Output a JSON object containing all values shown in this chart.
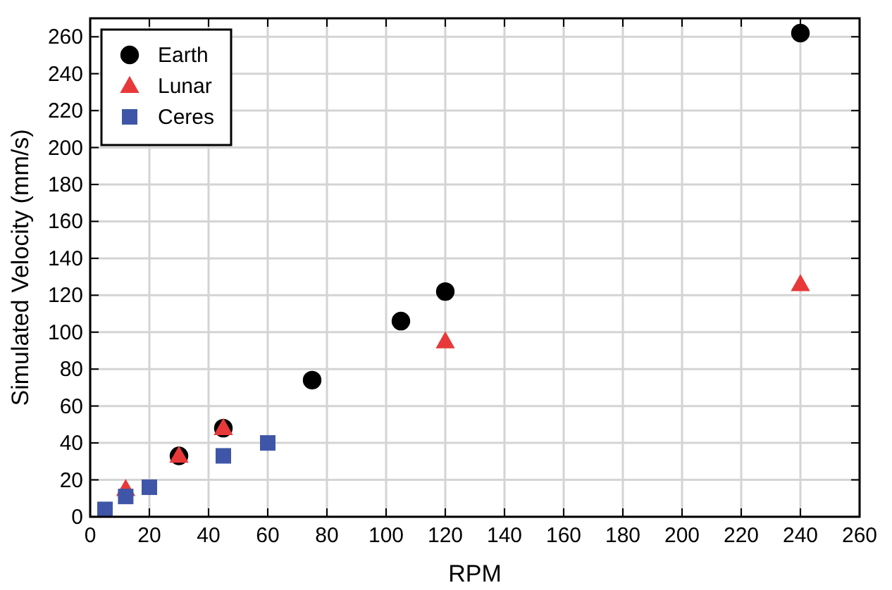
{
  "chart_data": {
    "type": "scatter",
    "xlabel": "RPM",
    "ylabel": "Simulated Velocity (mm/s)",
    "xlim": [
      0,
      260
    ],
    "ylim": [
      0,
      270
    ],
    "xticks": [
      0,
      20,
      40,
      60,
      80,
      100,
      120,
      140,
      160,
      180,
      200,
      220,
      240,
      260
    ],
    "yticks": [
      0,
      20,
      40,
      60,
      80,
      100,
      120,
      140,
      160,
      180,
      200,
      220,
      240,
      260
    ],
    "grid": true,
    "legend": "top left",
    "series": [
      {
        "name": "Earth",
        "color": "#000000",
        "marker": "circle",
        "x": [
          30,
          45,
          75,
          105,
          120,
          240
        ],
        "values": [
          33,
          48,
          74,
          106,
          122,
          262
        ]
      },
      {
        "name": "Lunar",
        "color": "#e8393a",
        "marker": "triangle",
        "x": [
          12,
          30,
          45,
          120,
          240
        ],
        "values": [
          15,
          33,
          48,
          95,
          126
        ]
      },
      {
        "name": "Ceres",
        "color": "#3f56a8",
        "marker": "square",
        "x": [
          5,
          12,
          20,
          45,
          60
        ],
        "values": [
          4,
          11,
          16,
          33,
          40
        ]
      }
    ]
  }
}
